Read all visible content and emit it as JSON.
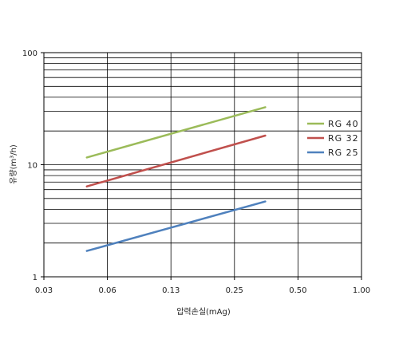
{
  "chart_data": {
    "type": "line",
    "xlabel": "압력손실(mAg)",
    "ylabel": "유량(m³/h)",
    "x_ticks": [
      "0.03",
      "0.06",
      "0.13",
      "0.25",
      "0.50",
      "1.00"
    ],
    "y_ticks": [
      "1",
      "10",
      "100"
    ],
    "x_scale": "log2",
    "y_scale": "log",
    "xlim": [
      0.0313,
      1.0
    ],
    "ylim": [
      1,
      100
    ],
    "grid": true,
    "legend_position": "right",
    "series": [
      {
        "name": "RG 40",
        "color": "#9bbb59",
        "x": [
          0.05,
          0.35
        ],
        "y": [
          11.6,
          32.6
        ]
      },
      {
        "name": "RG 32",
        "color": "#c0504d",
        "x": [
          0.05,
          0.35
        ],
        "y": [
          6.4,
          18.2
        ]
      },
      {
        "name": "RG 25",
        "color": "#4f81bd",
        "x": [
          0.05,
          0.35
        ],
        "y": [
          1.7,
          4.7
        ]
      }
    ]
  }
}
